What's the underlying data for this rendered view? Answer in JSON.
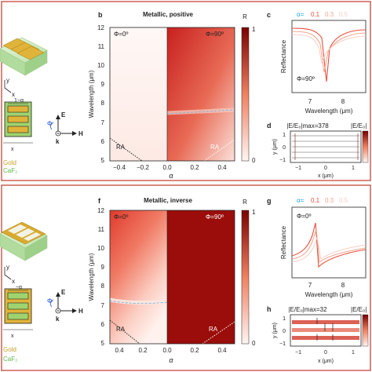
{
  "panels": {
    "b": {
      "letter": "b",
      "title": "Metallic, positive",
      "left_label": "Φ=0º",
      "right_label": "Φ=90º",
      "ylabel": "Wavelength (μm)",
      "xlabel": "α",
      "ra_left": "RA",
      "ra_right": "RA",
      "cbar_label": "R",
      "cbar_max": "1",
      "cbar_min": "0",
      "xticks": [
        "−0.4",
        "−0.2",
        "0.0",
        "0.2",
        "0.4"
      ],
      "yticks": [
        "12",
        "11",
        "10",
        "9",
        "8",
        "7",
        "6",
        "5"
      ]
    },
    "f": {
      "letter": "f",
      "title": "Metallic, inverse",
      "left_label": "Φ=0º",
      "right_label": "Φ=90º",
      "ylabel": "Wavelength (μm)",
      "xlabel": "α",
      "ra_left": "RA",
      "ra_right": "RA",
      "cbar_label": "R",
      "cbar_max": "1",
      "cbar_min": "0",
      "xticks": [
        "0.4",
        "0.2",
        "0.0",
        "0.2",
        "0.4"
      ],
      "yticks": [
        "12",
        "11",
        "10",
        "9",
        "8",
        "7",
        "6",
        "5"
      ]
    },
    "c": {
      "letter": "c",
      "legend_prefix": "α=",
      "legend_values": [
        "0.1",
        "0.3",
        "0.5"
      ],
      "ylabel": "Reflectance",
      "xlabel": "Wavelength (μm)",
      "xticks": [
        "7",
        "8"
      ],
      "inset": "Φ=90º"
    },
    "g": {
      "letter": "g",
      "legend_prefix": "α=",
      "legend_values": [
        "0.1",
        "0.3",
        "0.5"
      ],
      "ylabel": "Reflectance",
      "xlabel": "Wavelength (μm)",
      "xticks": [
        "7",
        "8"
      ],
      "inset": "Φ=0º"
    },
    "d": {
      "letter": "d",
      "title": "|E/E₀|max=378",
      "cbar_label": "|E/E₀|",
      "ylabel": "y (μm)",
      "xlabel": "x (μm)",
      "yticks": [
        "1",
        "0",
        "−1"
      ],
      "xticks": [
        "−1",
        "0",
        "1"
      ]
    },
    "h": {
      "letter": "h",
      "title": "|E/E₀|max=32",
      "cbar_label": "|E/E₀|",
      "ylabel": "y (μm)",
      "xlabel": "x (μm)",
      "yticks": [
        "1",
        "0",
        "−1"
      ],
      "xticks": [
        "−1",
        "0",
        "1"
      ]
    },
    "left_top": {
      "alpha_label": "1−α",
      "e_label": "E",
      "h_label": "H",
      "k_label": "k",
      "phi_label": "Φ",
      "axis_x": "x",
      "axis_y": "y",
      "gold": "Gold",
      "caf2": "CaF₂"
    },
    "left_bottom": {
      "alpha_label": "−α",
      "e_label": "E",
      "h_label": "H",
      "k_label": "k",
      "phi_label": "Φ",
      "axis_x": "x",
      "axis_y": "y",
      "gold": "Gold",
      "caf2": "CaF₂"
    }
  },
  "colors": {
    "heat_dark": "#8b0000",
    "heat_light": "#fdf1ee",
    "gold": "#d4a82a",
    "caf2": "#b9e3a6",
    "legend_a01": "#e8503a",
    "legend_a03": "#f1a48f",
    "legend_a05": "#f6cfc3",
    "divider": "#c0392b"
  }
}
